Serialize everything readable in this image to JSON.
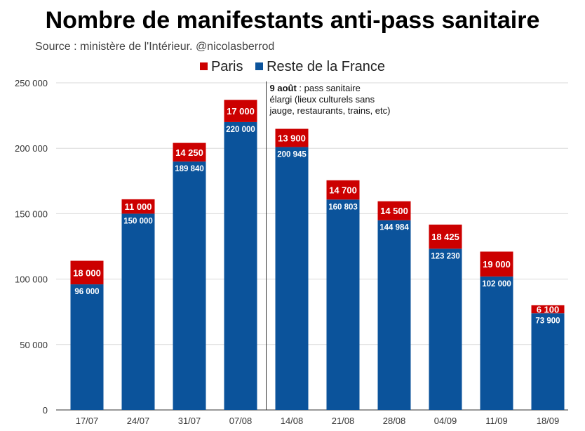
{
  "chart_data": {
    "type": "bar",
    "stacked": true,
    "title": "Nombre de manifestants anti-pass sanitaire",
    "subtitle": "Source : ministère de l'Intérieur. @nicolasberrod",
    "categories": [
      "17/07",
      "24/07",
      "31/07",
      "07/08",
      "14/08",
      "21/08",
      "28/08",
      "04/09",
      "11/09",
      "18/09"
    ],
    "series": [
      {
        "name": "Reste de la France",
        "color": "#0b539b",
        "values": [
          96000,
          150000,
          189840,
          220000,
          200945,
          160803,
          144984,
          123230,
          102000,
          73900
        ],
        "labels": [
          "96 000",
          "150 000",
          "189 840",
          "220 000",
          "200 945",
          "160 803",
          "144 984",
          "123 230",
          "102 000",
          "73 900"
        ]
      },
      {
        "name": "Paris",
        "color": "#cc0000",
        "values": [
          18000,
          11000,
          14250,
          17000,
          13900,
          14700,
          14500,
          18425,
          19000,
          6100
        ],
        "labels": [
          "18 000",
          "11 000",
          "14 250",
          "17 000",
          "13 900",
          "14 700",
          "14 500",
          "18 425",
          "19 000",
          "6 100"
        ]
      }
    ],
    "ylim": [
      0,
      250000
    ],
    "yticks": [
      0,
      50000,
      100000,
      150000,
      200000,
      250000
    ],
    "ytick_labels": [
      "0",
      "50 000",
      "100 000",
      "150 000",
      "200 000",
      "250 000"
    ],
    "legend_position": "top",
    "grid": true,
    "annotation": {
      "after_category": "07/08",
      "bold": "9 août",
      "lines": [
        " : pass sanitaire",
        "élargi (lieux culturels sans",
        "jauge, restaurants, trains, etc)"
      ]
    }
  }
}
